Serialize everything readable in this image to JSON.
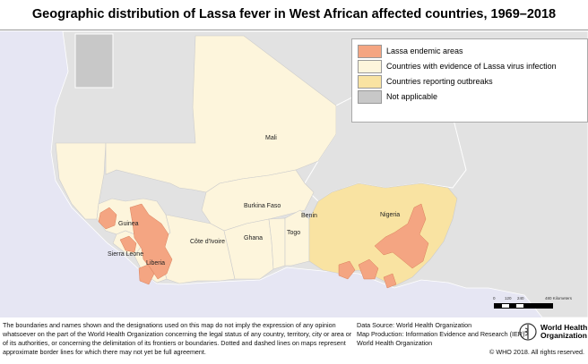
{
  "title": "Geographic distribution of Lassa fever in West African affected countries, 1969–2018",
  "colors": {
    "sea": "#e6e6f3",
    "other_land": "#e2e2e2",
    "not_applicable": "#c8c8c8",
    "lassa_endemic": "#f4a582",
    "evidence": "#fdf5dc",
    "outbreaks": "#f9e3a2"
  },
  "legend": [
    {
      "label": "Lassa endemic areas",
      "color": "#f4a582"
    },
    {
      "label": "Countries with evidence of Lassa virus infection",
      "color": "#fdf5dc"
    },
    {
      "label": "Countries reporting outbreaks",
      "color": "#f9e3a2"
    },
    {
      "label": "Not applicable",
      "color": "#c8c8c8"
    }
  ],
  "countries": {
    "mali": "Mali",
    "burkina": "Burkina Faso",
    "guinea": "Guinea",
    "sierra_leone": "Sierra Leone",
    "liberia": "Liberia",
    "cote": "Côte d'Ivoire",
    "ghana": "Ghana",
    "togo": "Togo",
    "benin": "Benin",
    "nigeria": "Nigeria"
  },
  "scale_bar": {
    "ticks": [
      "0",
      "120",
      "240",
      "480 Kilometers"
    ]
  },
  "footer": {
    "disclaimer": "The boundaries and names shown and the designations used on this map do not imply the expression of any opinion whatsoever on the part of the World Health Organization concerning the legal status of any country, territory, city or area or of its authorities, or concerning the delimitation of its frontiers or boundaries. Dotted and dashed lines on maps represent approximate border lines for which there may not yet be full agreement.",
    "data_source": "Data Source: World Health Organization",
    "map_production": "Map Production: Information Evidence and Research (IER)",
    "org": "World Health Organization",
    "logo_text_1": "World Health",
    "logo_text_2": "Organization",
    "copyright": "© WHO 2018. All rights reserved."
  }
}
